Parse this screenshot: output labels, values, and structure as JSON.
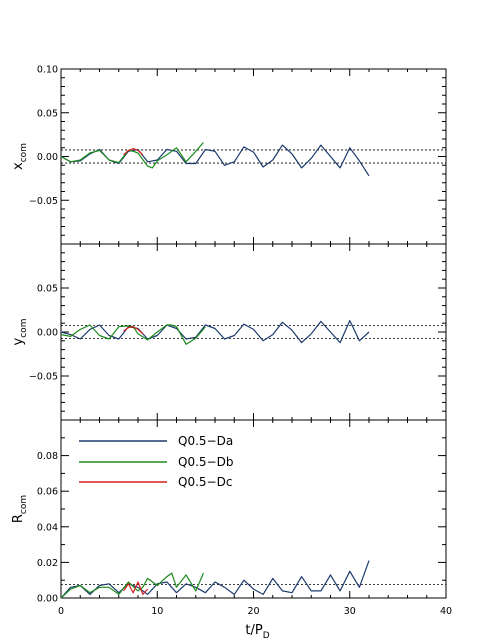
{
  "chart_data": {
    "type": "line",
    "x_axis": {
      "label_main": "t/P",
      "label_sub": "D",
      "range": [
        0,
        40
      ],
      "ticks": [
        0,
        10,
        20,
        30,
        40
      ],
      "tick_labels": [
        "0",
        "10",
        "20",
        "30",
        "40"
      ]
    },
    "legend": {
      "placement": "top-left of bottom panel",
      "entries": [
        {
          "label": "Q0.5−Da",
          "color": "#1c3a6e"
        },
        {
          "label": "Q0.5−Db",
          "color": "#1e8c1e"
        },
        {
          "label": "Q0.5−Dc",
          "color": "#d42020"
        }
      ]
    },
    "panels": [
      {
        "id": "x",
        "ylabel_main": "x",
        "ylabel_sub": "com",
        "ylim": [
          -0.1,
          0.1
        ],
        "yticks": [
          0.1,
          0.05,
          0.0,
          -0.05
        ],
        "ytick_labels": [
          "0.10",
          "0.05",
          "0.00",
          "−0.05"
        ],
        "reference_lines": [
          0.0075,
          -0.0075
        ],
        "series": [
          {
            "color": "#1c3a6e",
            "x": [
              0,
              1,
              2,
              3,
              4,
              5,
              6,
              7,
              8,
              9,
              10,
              11,
              12,
              13,
              14,
              15,
              16,
              17,
              18,
              19,
              20,
              21,
              22,
              23,
              24,
              25,
              26,
              27,
              28,
              29,
              30,
              31,
              32
            ],
            "y": [
              0.0,
              -0.006,
              -0.005,
              0.003,
              0.008,
              -0.004,
              -0.008,
              0.006,
              0.008,
              -0.006,
              -0.004,
              0.008,
              0.006,
              -0.008,
              -0.008,
              0.008,
              0.006,
              -0.01,
              -0.006,
              0.011,
              0.005,
              -0.012,
              -0.004,
              0.013,
              0.003,
              -0.013,
              -0.002,
              0.013,
              0.0,
              -0.013,
              0.01,
              -0.005,
              -0.022
            ]
          },
          {
            "color": "#1e8c1e",
            "x": [
              0,
              1,
              2,
              3,
              4,
              5,
              6,
              7,
              7.5,
              8,
              9,
              9.5,
              10,
              11,
              12,
              13,
              14,
              14.8
            ],
            "y": [
              0.0,
              -0.006,
              -0.004,
              0.004,
              0.007,
              -0.004,
              -0.007,
              0.007,
              0.006,
              0.004,
              -0.011,
              -0.013,
              -0.005,
              0.002,
              0.01,
              -0.006,
              0.006,
              0.016
            ]
          },
          {
            "color": "#d42020",
            "x": [
              6.5,
              7,
              7.5,
              8,
              8.5
            ],
            "y": [
              0.002,
              0.007,
              0.009,
              0.007,
              0.002
            ]
          }
        ]
      },
      {
        "id": "y",
        "ylabel_main": "y",
        "ylabel_sub": "com",
        "ylim": [
          -0.1,
          0.1
        ],
        "yticks": [
          0.05,
          0.0,
          -0.05
        ],
        "ytick_labels": [
          "0.05",
          "0.00",
          "−0.05"
        ],
        "reference_lines": [
          0.0075,
          -0.0075
        ],
        "series": [
          {
            "color": "#1c3a6e",
            "x": [
              0,
              1,
              2,
              3,
              4,
              5,
              6,
              7,
              8,
              9,
              10,
              11,
              12,
              13,
              14,
              15,
              16,
              17,
              18,
              19,
              20,
              21,
              22,
              23,
              24,
              25,
              26,
              27,
              28,
              29,
              30,
              31,
              32
            ],
            "y": [
              0.0,
              -0.003,
              -0.008,
              0.003,
              0.008,
              -0.004,
              -0.008,
              0.006,
              0.004,
              -0.008,
              -0.004,
              0.008,
              0.004,
              -0.008,
              -0.006,
              0.008,
              0.004,
              -0.008,
              -0.004,
              0.009,
              0.003,
              -0.01,
              -0.003,
              0.011,
              0.002,
              -0.012,
              -0.002,
              0.012,
              0.0,
              -0.012,
              0.013,
              -0.01,
              0.0
            ]
          },
          {
            "color": "#1e8c1e",
            "x": [
              0,
              1,
              2,
              3,
              4,
              5,
              6,
              7,
              7.5,
              8,
              9,
              10,
              11,
              11.5,
              12,
              13,
              14,
              15
            ],
            "y": [
              -0.003,
              -0.005,
              0.003,
              0.008,
              -0.004,
              -0.008,
              0.006,
              0.007,
              0.006,
              -0.002,
              -0.009,
              0.0,
              0.008,
              0.008,
              0.006,
              -0.014,
              -0.007,
              0.006
            ]
          },
          {
            "color": "#d42020",
            "x": [
              6.5,
              7,
              7.5,
              8,
              8.5
            ],
            "y": [
              0.001,
              0.005,
              0.006,
              0.003,
              -0.002
            ]
          }
        ]
      },
      {
        "id": "R",
        "ylabel_main": "R",
        "ylabel_sub": "com",
        "ylim": [
          0,
          0.1
        ],
        "yticks": [
          0.08,
          0.06,
          0.04,
          0.02,
          0.0
        ],
        "ytick_labels": [
          "0.08",
          "0.06",
          "0.04",
          "0.02",
          "0.00"
        ],
        "reference_lines": [
          0.0075
        ],
        "series": [
          {
            "color": "#1c3a6e",
            "x": [
              0,
              1,
              2,
              3,
              4,
              5,
              6,
              7,
              8,
              9,
              10,
              11,
              12,
              13,
              14,
              15,
              16,
              17,
              18,
              19,
              20,
              21,
              22,
              23,
              24,
              25,
              26,
              27,
              28,
              29,
              30,
              31,
              32
            ],
            "y": [
              0.0,
              0.006,
              0.007,
              0.002,
              0.007,
              0.008,
              0.003,
              0.008,
              0.006,
              0.002,
              0.008,
              0.009,
              0.003,
              0.008,
              0.006,
              0.003,
              0.009,
              0.006,
              0.002,
              0.01,
              0.005,
              0.002,
              0.011,
              0.004,
              0.003,
              0.012,
              0.004,
              0.004,
              0.013,
              0.004,
              0.015,
              0.006,
              0.021
            ]
          },
          {
            "color": "#1e8c1e",
            "x": [
              0,
              1,
              2,
              3,
              4,
              5,
              6,
              7,
              8,
              8.5,
              9,
              10,
              11,
              11.5,
              12,
              13,
              14,
              14.8
            ],
            "y": [
              0.0,
              0.005,
              0.007,
              0.003,
              0.006,
              0.006,
              0.002,
              0.009,
              0.004,
              0.006,
              0.011,
              0.007,
              0.012,
              0.014,
              0.006,
              0.013,
              0.004,
              0.014
            ]
          },
          {
            "color": "#d42020",
            "x": [
              6.5,
              7,
              7.5,
              8,
              8.5,
              9
            ],
            "y": [
              0.004,
              0.008,
              0.003,
              0.009,
              0.002,
              0.005
            ]
          }
        ]
      }
    ]
  }
}
